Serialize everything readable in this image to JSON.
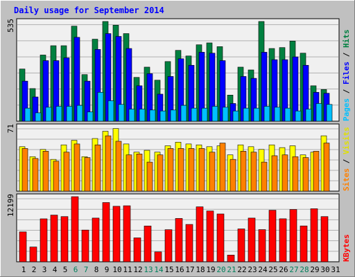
{
  "chart_data": {
    "type": "bar",
    "title": "Daily usage for September 2014",
    "categories": [
      "1",
      "2",
      "3",
      "4",
      "5",
      "6",
      "7",
      "8",
      "9",
      "10",
      "11",
      "12",
      "13",
      "14",
      "15",
      "16",
      "17",
      "18",
      "19",
      "20",
      "21",
      "22",
      "23",
      "24",
      "25",
      "26",
      "27",
      "28",
      "29",
      "30",
      "31"
    ],
    "weekend_days": [
      "6",
      "7",
      "13",
      "14",
      "20",
      "21",
      "27",
      "28"
    ],
    "panels": [
      {
        "id": "pages_files_hits",
        "ymax_label": "535",
        "ymax": 535,
        "legend": [
          "Pages",
          "Files",
          "Hits"
        ],
        "series": [
          {
            "name": "Hits",
            "color": "#008040",
            "values": [
              280,
              175,
              355,
              405,
              405,
              510,
              250,
              440,
              535,
              515,
              470,
              235,
              290,
              220,
              320,
              380,
              350,
              410,
              420,
              400,
              140,
              290,
              275,
              535,
              390,
              395,
              430,
              365,
              190,
              170,
              0
            ]
          },
          {
            "name": "Files",
            "color": "#0000ff",
            "values": [
              215,
              130,
              325,
              325,
              340,
              450,
              215,
              385,
              470,
              455,
              390,
              190,
              255,
              145,
              240,
              335,
              300,
              370,
              365,
              325,
              95,
              240,
              230,
              370,
              330,
              330,
              345,
              300,
              155,
              150,
              0
            ]
          },
          {
            "name": "Pages",
            "color": "#00c0ff",
            "values": [
              70,
              45,
              75,
              80,
              80,
              85,
              50,
              155,
              110,
              90,
              65,
              65,
              60,
              55,
              60,
              85,
              70,
              70,
              80,
              75,
              55,
              70,
              70,
              80,
              75,
              70,
              55,
              65,
              95,
              90,
              0
            ]
          }
        ]
      },
      {
        "id": "visits_sites",
        "ymax_label": "71",
        "ymax": 71,
        "legend": [
          "Sites",
          "Visits"
        ],
        "series": [
          {
            "name": "Visits",
            "color": "#ffff00",
            "values": [
              49,
              38,
              46,
              35,
              51,
              56,
              38,
              58,
              66,
              69,
              52,
              43,
              45,
              43,
              50,
              54,
              52,
              51,
              49,
              50,
              40,
              51,
              49,
              46,
              51,
              48,
              50,
              40,
              43,
              61,
              0
            ]
          },
          {
            "name": "Sites",
            "color": "#ff8000",
            "values": [
              47,
              36,
              44,
              33,
              43,
              52,
              37,
              51,
              61,
              55,
              40,
              41,
              32,
              40,
              47,
              47,
              47,
              47,
              43,
              53,
              35,
              44,
              43,
              32,
              39,
              40,
              38,
              37,
              44,
              53,
              0
            ]
          }
        ]
      },
      {
        "id": "kbytes",
        "ymax_label": "12199",
        "ymax": 12199,
        "legend": [
          "KBytes"
        ],
        "series": [
          {
            "name": "KBytes",
            "color": "#ff0000",
            "values": [
              5600,
              2770,
              8050,
              8750,
              8470,
              12199,
              5950,
              8190,
              11100,
              10400,
              10500,
              4480,
              6710,
              1850,
              6020,
              8120,
              7000,
              10300,
              9520,
              8960,
              1260,
              6160,
              8190,
              6030,
              9660,
              8060,
              9800,
              6720,
              9940,
              8470,
              0
            ]
          }
        ]
      }
    ]
  },
  "colors": {
    "background": "#c0c0c0",
    "plot_bg": "#f0f0f0",
    "title": "#0000ff",
    "weekend_label": "#00805c",
    "weekday_label": "#000000"
  }
}
